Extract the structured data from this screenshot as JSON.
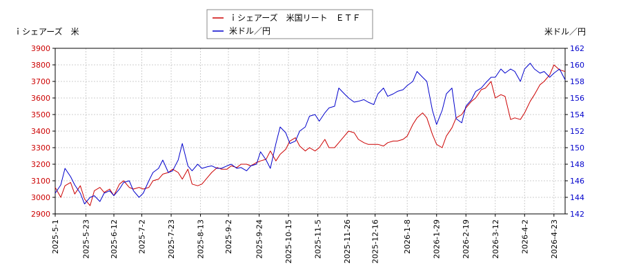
{
  "chart_data": {
    "type": "line",
    "left_axis_label": "ｉシェアーズ　米",
    "right_axis_label": "米ドル／円",
    "left_axis": {
      "min": 2900,
      "max": 3900,
      "ticks": [
        "2900",
        "3000",
        "3100",
        "3200",
        "3300",
        "3400",
        "3500",
        "3600",
        "3700",
        "3800",
        "3900"
      ],
      "color": "#cc0000"
    },
    "right_axis": {
      "min": 142,
      "max": 162,
      "ticks": [
        "142",
        "144",
        "146",
        "148",
        "150",
        "152",
        "154",
        "156",
        "158",
        "160",
        "162"
      ],
      "color": "#0000cc"
    },
    "x_range": [
      "2025-05-01",
      "2026-05-01"
    ],
    "x_ticks": [
      "2025-5-1",
      "2025-5-23",
      "2025-6-12",
      "2025-7-2",
      "2025-7-23",
      "2025-8-13",
      "2025-9-2",
      "2025-9-24",
      "2025-10-15",
      "2025-11-5",
      "2025-11-26",
      "2025-12-16",
      "2026-1-8",
      "2026-1-29",
      "2026-2-19",
      "2026-3-12",
      "2026-4-2",
      "2026-4-23"
    ],
    "grid": true,
    "legend_position": "top-center",
    "series": [
      {
        "name": "ｉシェアーズ　米国リート　ＥＴＦ",
        "axis": "left",
        "color": "#cc0000",
        "points": [
          [
            "2025-05-01",
            3060
          ],
          [
            "2025-05-05",
            3000
          ],
          [
            "2025-05-08",
            3070
          ],
          [
            "2025-05-12",
            3090
          ],
          [
            "2025-05-15",
            3020
          ],
          [
            "2025-05-19",
            3070
          ],
          [
            "2025-05-22",
            2990
          ],
          [
            "2025-05-26",
            2950
          ],
          [
            "2025-05-29",
            3040
          ],
          [
            "2025-06-02",
            3060
          ],
          [
            "2025-06-05",
            3030
          ],
          [
            "2025-06-09",
            3050
          ],
          [
            "2025-06-12",
            3010
          ],
          [
            "2025-06-16",
            3080
          ],
          [
            "2025-06-19",
            3100
          ],
          [
            "2025-06-23",
            3060
          ],
          [
            "2025-06-26",
            3050
          ],
          [
            "2025-06-30",
            3060
          ],
          [
            "2025-07-03",
            3050
          ],
          [
            "2025-07-07",
            3060
          ],
          [
            "2025-07-10",
            3100
          ],
          [
            "2025-07-14",
            3110
          ],
          [
            "2025-07-17",
            3140
          ],
          [
            "2025-07-21",
            3150
          ],
          [
            "2025-07-24",
            3170
          ],
          [
            "2025-07-28",
            3150
          ],
          [
            "2025-07-31",
            3110
          ],
          [
            "2025-08-04",
            3170
          ],
          [
            "2025-08-07",
            3080
          ],
          [
            "2025-08-11",
            3070
          ],
          [
            "2025-08-14",
            3080
          ],
          [
            "2025-08-18",
            3120
          ],
          [
            "2025-08-21",
            3150
          ],
          [
            "2025-08-25",
            3180
          ],
          [
            "2025-08-28",
            3170
          ],
          [
            "2025-09-01",
            3170
          ],
          [
            "2025-09-04",
            3190
          ],
          [
            "2025-09-08",
            3180
          ],
          [
            "2025-09-11",
            3200
          ],
          [
            "2025-09-15",
            3200
          ],
          [
            "2025-09-18",
            3190
          ],
          [
            "2025-09-22",
            3210
          ],
          [
            "2025-09-25",
            3220
          ],
          [
            "2025-09-29",
            3230
          ],
          [
            "2025-10-02",
            3280
          ],
          [
            "2025-10-06",
            3220
          ],
          [
            "2025-10-09",
            3260
          ],
          [
            "2025-10-13",
            3290
          ],
          [
            "2025-10-16",
            3340
          ],
          [
            "2025-10-20",
            3360
          ],
          [
            "2025-10-23",
            3310
          ],
          [
            "2025-10-27",
            3280
          ],
          [
            "2025-10-30",
            3300
          ],
          [
            "2025-11-03",
            3280
          ],
          [
            "2025-11-06",
            3300
          ],
          [
            "2025-11-10",
            3350
          ],
          [
            "2025-11-13",
            3300
          ],
          [
            "2025-11-17",
            3300
          ],
          [
            "2025-11-20",
            3330
          ],
          [
            "2025-11-24",
            3370
          ],
          [
            "2025-11-27",
            3400
          ],
          [
            "2025-12-01",
            3390
          ],
          [
            "2025-12-04",
            3350
          ],
          [
            "2025-12-08",
            3330
          ],
          [
            "2025-12-11",
            3320
          ],
          [
            "2025-12-15",
            3320
          ],
          [
            "2025-12-18",
            3320
          ],
          [
            "2025-12-22",
            3310
          ],
          [
            "2025-12-25",
            3330
          ],
          [
            "2025-12-29",
            3340
          ],
          [
            "2026-01-01",
            3340
          ],
          [
            "2026-01-05",
            3350
          ],
          [
            "2026-01-08",
            3370
          ],
          [
            "2026-01-12",
            3440
          ],
          [
            "2026-01-15",
            3480
          ],
          [
            "2026-01-19",
            3510
          ],
          [
            "2026-01-22",
            3480
          ],
          [
            "2026-01-26",
            3380
          ],
          [
            "2026-01-29",
            3320
          ],
          [
            "2026-02-02",
            3300
          ],
          [
            "2026-02-05",
            3370
          ],
          [
            "2026-02-09",
            3420
          ],
          [
            "2026-02-12",
            3480
          ],
          [
            "2026-02-16",
            3500
          ],
          [
            "2026-02-19",
            3540
          ],
          [
            "2026-02-23",
            3580
          ],
          [
            "2026-02-26",
            3600
          ],
          [
            "2026-03-02",
            3650
          ],
          [
            "2026-03-05",
            3660
          ],
          [
            "2026-03-09",
            3700
          ],
          [
            "2026-03-12",
            3600
          ],
          [
            "2026-03-16",
            3620
          ],
          [
            "2026-03-19",
            3610
          ],
          [
            "2026-03-23",
            3470
          ],
          [
            "2026-03-26",
            3480
          ],
          [
            "2026-03-30",
            3470
          ],
          [
            "2026-04-02",
            3510
          ],
          [
            "2026-04-06",
            3580
          ],
          [
            "2026-04-09",
            3620
          ],
          [
            "2026-04-13",
            3680
          ],
          [
            "2026-04-16",
            3700
          ],
          [
            "2026-04-20",
            3740
          ],
          [
            "2026-04-23",
            3800
          ],
          [
            "2026-04-27",
            3770
          ],
          [
            "2026-05-01",
            3760
          ]
        ]
      },
      {
        "name": "米ドル／円",
        "axis": "right",
        "color": "#0000cc",
        "points": [
          [
            "2025-05-01",
            144.5
          ],
          [
            "2025-05-05",
            145.5
          ],
          [
            "2025-05-08",
            147.5
          ],
          [
            "2025-05-12",
            146.5
          ],
          [
            "2025-05-15",
            145.5
          ],
          [
            "2025-05-19",
            144.5
          ],
          [
            "2025-05-22",
            143.2
          ],
          [
            "2025-05-26",
            144.0
          ],
          [
            "2025-05-29",
            144.2
          ],
          [
            "2025-06-02",
            143.5
          ],
          [
            "2025-06-05",
            144.5
          ],
          [
            "2025-06-09",
            144.8
          ],
          [
            "2025-06-12",
            144.2
          ],
          [
            "2025-06-16",
            145.0
          ],
          [
            "2025-06-19",
            145.8
          ],
          [
            "2025-06-23",
            146.0
          ],
          [
            "2025-06-26",
            144.8
          ],
          [
            "2025-06-30",
            144.0
          ],
          [
            "2025-07-03",
            144.5
          ],
          [
            "2025-07-07",
            146.0
          ],
          [
            "2025-07-10",
            147.0
          ],
          [
            "2025-07-14",
            147.5
          ],
          [
            "2025-07-17",
            148.5
          ],
          [
            "2025-07-21",
            147.0
          ],
          [
            "2025-07-24",
            147.2
          ],
          [
            "2025-07-28",
            148.5
          ],
          [
            "2025-07-31",
            150.5
          ],
          [
            "2025-08-04",
            147.8
          ],
          [
            "2025-08-07",
            147.2
          ],
          [
            "2025-08-11",
            148.0
          ],
          [
            "2025-08-14",
            147.5
          ],
          [
            "2025-08-18",
            147.7
          ],
          [
            "2025-08-21",
            147.8
          ],
          [
            "2025-08-25",
            147.5
          ],
          [
            "2025-08-28",
            147.5
          ],
          [
            "2025-09-01",
            147.8
          ],
          [
            "2025-09-04",
            148.0
          ],
          [
            "2025-09-08",
            147.5
          ],
          [
            "2025-09-11",
            147.6
          ],
          [
            "2025-09-15",
            147.2
          ],
          [
            "2025-09-18",
            147.8
          ],
          [
            "2025-09-22",
            148.0
          ],
          [
            "2025-09-25",
            149.5
          ],
          [
            "2025-09-29",
            148.5
          ],
          [
            "2025-10-02",
            147.5
          ],
          [
            "2025-10-06",
            150.5
          ],
          [
            "2025-10-09",
            152.5
          ],
          [
            "2025-10-13",
            151.8
          ],
          [
            "2025-10-16",
            150.5
          ],
          [
            "2025-10-20",
            150.8
          ],
          [
            "2025-10-23",
            152.0
          ],
          [
            "2025-10-27",
            152.5
          ],
          [
            "2025-10-30",
            153.8
          ],
          [
            "2025-11-03",
            154.0
          ],
          [
            "2025-11-06",
            153.2
          ],
          [
            "2025-11-10",
            154.2
          ],
          [
            "2025-11-13",
            154.8
          ],
          [
            "2025-11-17",
            155.0
          ],
          [
            "2025-11-20",
            157.2
          ],
          [
            "2025-11-24",
            156.5
          ],
          [
            "2025-11-27",
            156.0
          ],
          [
            "2025-12-01",
            155.5
          ],
          [
            "2025-12-04",
            155.6
          ],
          [
            "2025-12-08",
            155.8
          ],
          [
            "2025-12-11",
            155.5
          ],
          [
            "2025-12-15",
            155.2
          ],
          [
            "2025-12-18",
            156.5
          ],
          [
            "2025-12-22",
            157.2
          ],
          [
            "2025-12-25",
            156.2
          ],
          [
            "2025-12-29",
            156.5
          ],
          [
            "2026-01-01",
            156.8
          ],
          [
            "2026-01-05",
            157.0
          ],
          [
            "2026-01-08",
            157.5
          ],
          [
            "2026-01-12",
            158.0
          ],
          [
            "2026-01-15",
            159.2
          ],
          [
            "2026-01-19",
            158.5
          ],
          [
            "2026-01-22",
            158.0
          ],
          [
            "2026-01-26",
            154.5
          ],
          [
            "2026-01-29",
            152.8
          ],
          [
            "2026-02-02",
            154.5
          ],
          [
            "2026-02-05",
            156.5
          ],
          [
            "2026-02-09",
            157.2
          ],
          [
            "2026-02-12",
            153.5
          ],
          [
            "2026-02-16",
            153.0
          ],
          [
            "2026-02-19",
            155.0
          ],
          [
            "2026-02-23",
            155.8
          ],
          [
            "2026-02-26",
            156.8
          ],
          [
            "2026-03-02",
            157.2
          ],
          [
            "2026-03-05",
            157.8
          ],
          [
            "2026-03-09",
            158.5
          ],
          [
            "2026-03-12",
            158.5
          ],
          [
            "2026-03-16",
            159.5
          ],
          [
            "2026-03-19",
            159.0
          ],
          [
            "2026-03-23",
            159.5
          ],
          [
            "2026-03-26",
            159.2
          ],
          [
            "2026-03-30",
            158.0
          ],
          [
            "2026-04-02",
            159.5
          ],
          [
            "2026-04-06",
            160.2
          ],
          [
            "2026-04-09",
            159.5
          ],
          [
            "2026-04-13",
            159.0
          ],
          [
            "2026-04-16",
            159.2
          ],
          [
            "2026-04-20",
            158.5
          ],
          [
            "2026-04-23",
            159.0
          ],
          [
            "2026-04-27",
            159.5
          ],
          [
            "2026-05-01",
            158.2
          ]
        ]
      }
    ]
  }
}
